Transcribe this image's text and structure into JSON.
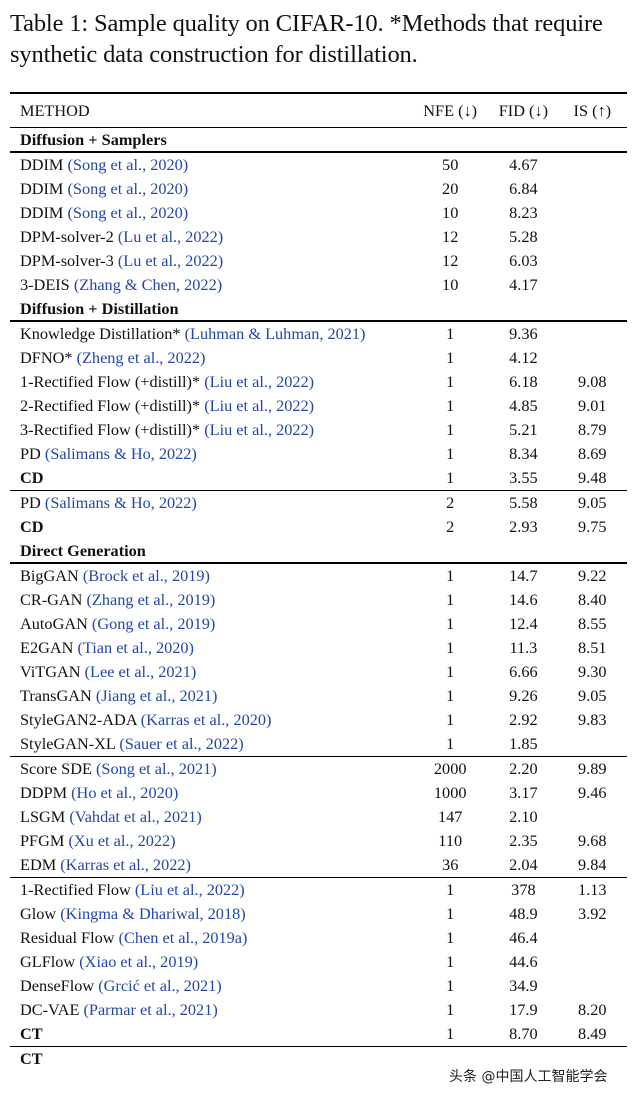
{
  "caption": "Table 1: Sample quality on CIFAR-10. *Methods that require synthetic data construction for distillation.",
  "headers": {
    "method": "METHOD",
    "nfe": "NFE (↓)",
    "fid": "FID (↓)",
    "is": "IS (↑)"
  },
  "sections": [
    {
      "title": "Diffusion + Samplers",
      "groups": [
        [
          {
            "name": "DDIM",
            "cite": "(Song et al., 2020)",
            "nfe": "50",
            "fid": "4.67",
            "is": ""
          },
          {
            "name": "DDIM",
            "cite": "(Song et al., 2020)",
            "nfe": "20",
            "fid": "6.84",
            "is": ""
          },
          {
            "name": "DDIM",
            "cite": "(Song et al., 2020)",
            "nfe": "10",
            "fid": "8.23",
            "is": ""
          },
          {
            "name": "DPM-solver-2",
            "cite": "(Lu et al., 2022)",
            "nfe": "12",
            "fid": "5.28",
            "is": ""
          },
          {
            "name": "DPM-solver-3",
            "cite": "(Lu et al., 2022)",
            "nfe": "12",
            "fid": "6.03",
            "is": ""
          },
          {
            "name": "3-DEIS",
            "cite": "(Zhang & Chen, 2022)",
            "nfe": "10",
            "fid": "4.17",
            "is": "",
            "bold": [
              "fid"
            ]
          }
        ]
      ]
    },
    {
      "title": "Diffusion + Distillation",
      "groups": [
        [
          {
            "name": "Knowledge Distillation*",
            "cite": "(Luhman & Luhman, 2021)",
            "nfe": "1",
            "fid": "9.36",
            "is": ""
          },
          {
            "name": "DFNO*",
            "cite": "(Zheng et al., 2022)",
            "nfe": "1",
            "fid": "4.12",
            "is": ""
          },
          {
            "name": "1-Rectified Flow (+distill)*",
            "cite": "(Liu et al., 2022)",
            "nfe": "1",
            "fid": "6.18",
            "is": "9.08"
          },
          {
            "name": "2-Rectified Flow (+distill)*",
            "cite": "(Liu et al., 2022)",
            "nfe": "1",
            "fid": "4.85",
            "is": "9.01"
          },
          {
            "name": "3-Rectified Flow (+distill)*",
            "cite": "(Liu et al., 2022)",
            "nfe": "1",
            "fid": "5.21",
            "is": "8.79"
          },
          {
            "name": "PD",
            "cite": "(Salimans & Ho, 2022)",
            "nfe": "1",
            "fid": "8.34",
            "is": "8.69"
          },
          {
            "name": "CD",
            "cite": "",
            "nfe": "1",
            "fid": "3.55",
            "is": "9.48",
            "bold": [
              "name",
              "fid",
              "is"
            ]
          }
        ],
        [
          {
            "name": "PD",
            "cite": "(Salimans & Ho, 2022)",
            "nfe": "2",
            "fid": "5.58",
            "is": "9.05"
          },
          {
            "name": "CD",
            "cite": "",
            "nfe": "2",
            "fid": "2.93",
            "is": "9.75",
            "bold": [
              "name",
              "fid",
              "is"
            ]
          }
        ]
      ]
    },
    {
      "title": "Direct Generation",
      "groups": [
        [
          {
            "name": "BigGAN",
            "cite": "(Brock et al., 2019)",
            "nfe": "1",
            "fid": "14.7",
            "is": "9.22"
          },
          {
            "name": "CR-GAN",
            "cite": "(Zhang et al., 2019)",
            "nfe": "1",
            "fid": "14.6",
            "is": "8.40"
          },
          {
            "name": "AutoGAN",
            "cite": "(Gong et al., 2019)",
            "nfe": "1",
            "fid": "12.4",
            "is": "8.55"
          },
          {
            "name": "E2GAN",
            "cite": "(Tian et al., 2020)",
            "nfe": "1",
            "fid": "11.3",
            "is": "8.51"
          },
          {
            "name": "ViTGAN",
            "cite": "(Lee et al., 2021)",
            "nfe": "1",
            "fid": "6.66",
            "is": "9.30"
          },
          {
            "name": "TransGAN",
            "cite": "(Jiang et al., 2021)",
            "nfe": "1",
            "fid": "9.26",
            "is": "9.05"
          },
          {
            "name": "StyleGAN2-ADA",
            "cite": "(Karras et al., 2020)",
            "nfe": "1",
            "fid": "2.92",
            "is": "9.83",
            "bold": [
              "is"
            ]
          },
          {
            "name": "StyleGAN-XL",
            "cite": "(Sauer et al., 2022)",
            "nfe": "1",
            "fid": "1.85",
            "is": "",
            "bold": [
              "fid"
            ]
          }
        ],
        [
          {
            "name": "Score SDE",
            "cite": "(Song et al., 2021)",
            "nfe": "2000",
            "fid": "2.20",
            "is": "9.89",
            "bold": [
              "is"
            ]
          },
          {
            "name": "DDPM",
            "cite": "(Ho et al., 2020)",
            "nfe": "1000",
            "fid": "3.17",
            "is": "9.46"
          },
          {
            "name": "LSGM",
            "cite": "(Vahdat et al., 2021)",
            "nfe": "147",
            "fid": "2.10",
            "is": ""
          },
          {
            "name": "PFGM",
            "cite": "(Xu et al., 2022)",
            "nfe": "110",
            "fid": "2.35",
            "is": "9.68"
          },
          {
            "name": "EDM",
            "cite": "(Karras et al., 2022)",
            "nfe": "36",
            "fid": "2.04",
            "is": "9.84",
            "bold": [
              "fid"
            ]
          }
        ],
        [
          {
            "name": "1-Rectified Flow",
            "cite": "(Liu et al., 2022)",
            "nfe": "1",
            "fid": "378",
            "is": "1.13"
          },
          {
            "name": "Glow",
            "cite": "(Kingma & Dhariwal, 2018)",
            "nfe": "1",
            "fid": "48.9",
            "is": "3.92"
          },
          {
            "name": "Residual Flow",
            "cite": "(Chen et al., 2019a)",
            "nfe": "1",
            "fid": "46.4",
            "is": ""
          },
          {
            "name": "GLFlow",
            "cite": "(Xiao et al., 2019)",
            "nfe": "1",
            "fid": "44.6",
            "is": ""
          },
          {
            "name": "DenseFlow",
            "cite": "(Grcić et al., 2021)",
            "nfe": "1",
            "fid": "34.9",
            "is": ""
          },
          {
            "name": "DC-VAE",
            "cite": "(Parmar et al., 2021)",
            "nfe": "1",
            "fid": "17.9",
            "is": "8.20"
          },
          {
            "name": "CT",
            "cite": "",
            "nfe": "1",
            "fid": "8.70",
            "is": "8.49",
            "bold": [
              "name",
              "fid",
              "is"
            ]
          }
        ],
        [
          {
            "name": "CT",
            "cite": "",
            "nfe": "",
            "fid": "",
            "is": "",
            "bold": [
              "name"
            ]
          }
        ]
      ]
    }
  ],
  "watermark": "头条 @中国人工智能学会"
}
